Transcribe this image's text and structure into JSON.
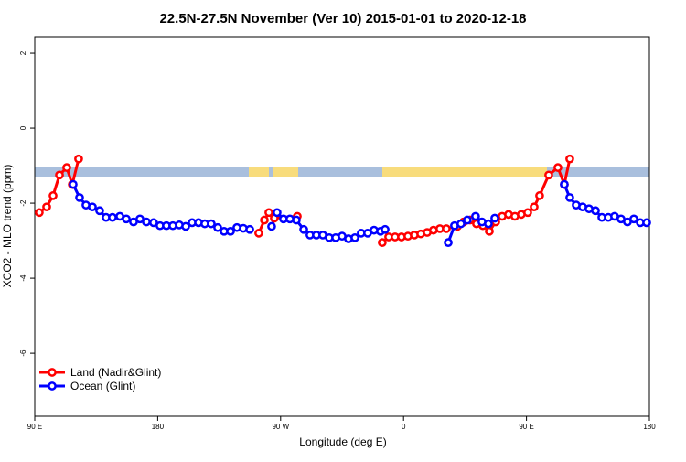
{
  "chart_data": {
    "type": "line",
    "title": "22.5N-27.5N November (Ver 10)   2015-01-01 to 2020-12-18",
    "x_label": "Longitude (deg E)",
    "y_label": "XCO2 - MLO trend (ppm)",
    "xlim": [
      90,
      540
    ],
    "xticks": [
      {
        "value": 90,
        "label": "90 E"
      },
      180,
      {
        "value": 270,
        "label": "90 W"
      },
      {
        "value": 360,
        "label": "0"
      },
      {
        "value": 450,
        "label": "90 E"
      },
      {
        "value": 540,
        "label": "180"
      }
    ],
    "ylim": [
      -7.68,
      2.44
    ],
    "yticks": [
      2,
      0,
      -2,
      -4,
      -6
    ],
    "legend": "bottomleft",
    "series": [
      {
        "name": "Land (Nadir&Glint)",
        "color": "#ff0000",
        "x": [
          93.3,
          98.7,
          103.4,
          108.1,
          113.4,
          117.5,
          122.1,
          null,
          254.0,
          258.1,
          261.4,
          265.4,
          282.2,
          null,
          344.4,
          349.1,
          353.8,
          358.5,
          363.2,
          367.9,
          372.6,
          377.3,
          381.9,
          386.6,
          391.3,
          399.4,
          404.0,
          408.7,
          413.4,
          418.1,
          422.8,
          427.5,
          432.2,
          436.9,
          441.5,
          446.2,
          450.9,
          455.6,
          459.6,
          466.3,
          473.0,
          477.7,
          481.7
        ],
        "values": [
          -2.25,
          -2.1,
          -1.8,
          -1.25,
          -1.05,
          -1.5,
          -0.82,
          null,
          -2.8,
          -2.45,
          -2.25,
          -2.4,
          -2.35,
          null,
          -3.05,
          -2.9,
          -2.9,
          -2.9,
          -2.88,
          -2.85,
          -2.82,
          -2.78,
          -2.72,
          -2.68,
          -2.68,
          -2.62,
          -2.5,
          -2.45,
          -2.55,
          -2.6,
          -2.75,
          -2.5,
          -2.35,
          -2.3,
          -2.35,
          -2.3,
          -2.25,
          -2.1,
          -1.8,
          -1.25,
          -1.05,
          -1.5,
          -0.82
        ]
      },
      {
        "name": "Ocean (Glint)",
        "color": "#0000ff",
        "x": [
          118.1,
          122.8,
          127.5,
          132.2,
          137.5,
          142.2,
          146.9,
          152.3,
          157.0,
          162.3,
          167.0,
          171.7,
          177.0,
          181.7,
          186.4,
          191.1,
          195.8,
          200.5,
          205.2,
          209.9,
          214.5,
          219.2,
          223.9,
          228.6,
          233.3,
          238.0,
          242.7,
          247.4,
          null,
          263.4,
          267.4,
          272.1,
          276.8,
          281.5,
          286.9,
          291.5,
          296.2,
          300.9,
          305.6,
          310.3,
          315.0,
          319.7,
          324.4,
          329.0,
          333.7,
          338.4,
          343.1,
          346.5,
          null,
          392.7,
          397.3,
          402.0,
          406.7,
          412.7,
          417.4,
          422.1,
          426.8,
          null,
          477.7,
          481.7,
          486.4,
          491.1,
          495.8,
          500.5,
          505.2,
          509.9,
          514.5,
          519.2,
          523.9,
          528.6,
          533.3,
          538.0
        ],
        "values": [
          -1.5,
          -1.85,
          -2.05,
          -2.1,
          -2.2,
          -2.38,
          -2.38,
          -2.35,
          -2.42,
          -2.5,
          -2.42,
          -2.5,
          -2.52,
          -2.6,
          -2.6,
          -2.6,
          -2.58,
          -2.62,
          -2.52,
          -2.52,
          -2.55,
          -2.55,
          -2.65,
          -2.75,
          -2.75,
          -2.65,
          -2.67,
          -2.7,
          null,
          -2.62,
          -2.25,
          -2.42,
          -2.42,
          -2.45,
          -2.7,
          -2.85,
          -2.85,
          -2.85,
          -2.92,
          -2.92,
          -2.88,
          -2.95,
          -2.92,
          -2.8,
          -2.8,
          -2.72,
          -2.75,
          -2.7,
          null,
          -3.05,
          -2.6,
          -2.55,
          -2.45,
          -2.35,
          -2.5,
          -2.55,
          -2.4,
          null,
          -1.5,
          -1.85,
          -2.05,
          -2.1,
          -2.15,
          -2.2,
          -2.38,
          -2.38,
          -2.35,
          -2.42,
          -2.5,
          -2.42,
          -2.52,
          -2.52
        ]
      }
    ]
  }
}
